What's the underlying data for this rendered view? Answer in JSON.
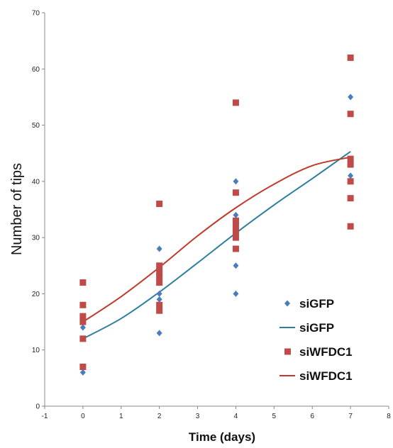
{
  "chart_data": {
    "type": "scatter",
    "title": "",
    "xlabel": "Time (days)",
    "ylabel": "Number of tips",
    "xlim": [
      -1,
      8
    ],
    "ylim": [
      0,
      70
    ],
    "xticks": [
      "-1",
      "0",
      "1",
      "2",
      "3",
      "4",
      "5",
      "6",
      "7",
      "8"
    ],
    "yticks": [
      "0",
      "10",
      "20",
      "30",
      "40",
      "50",
      "60",
      "70"
    ],
    "grid": false,
    "legend_position": "bottom-right",
    "series": [
      {
        "name": "siGFP",
        "kind": "points",
        "marker": "diamond",
        "color": "#4a7ebb",
        "points": [
          [
            0,
            6
          ],
          [
            0,
            12
          ],
          [
            0,
            14
          ],
          [
            0,
            15
          ],
          [
            2,
            13
          ],
          [
            2,
            18
          ],
          [
            2,
            19
          ],
          [
            2,
            20
          ],
          [
            2,
            22
          ],
          [
            2,
            28
          ],
          [
            4,
            20
          ],
          [
            4,
            25
          ],
          [
            4,
            30
          ],
          [
            4,
            31
          ],
          [
            4,
            32
          ],
          [
            4,
            34
          ],
          [
            4,
            40
          ],
          [
            7,
            41
          ],
          [
            7,
            43
          ],
          [
            7,
            55
          ]
        ]
      },
      {
        "name": "siGFP",
        "kind": "curve",
        "color": "#2e7f9c",
        "x": [
          0,
          1,
          2,
          3,
          4,
          5,
          6,
          7
        ],
        "y": [
          12,
          15.6,
          20.3,
          25.5,
          30.8,
          35.8,
          40.5,
          45.3
        ]
      },
      {
        "name": "siWFDC1",
        "kind": "points",
        "marker": "square",
        "color": "#be4b48",
        "points": [
          [
            0,
            7
          ],
          [
            0,
            12
          ],
          [
            0,
            15
          ],
          [
            0,
            16
          ],
          [
            0,
            18
          ],
          [
            0,
            22
          ],
          [
            2,
            17
          ],
          [
            2,
            18
          ],
          [
            2,
            22
          ],
          [
            2,
            23
          ],
          [
            2,
            24
          ],
          [
            2,
            25
          ],
          [
            2,
            36
          ],
          [
            4,
            28
          ],
          [
            4,
            30
          ],
          [
            4,
            31
          ],
          [
            4,
            32
          ],
          [
            4,
            33
          ],
          [
            4,
            38
          ],
          [
            4,
            54
          ],
          [
            7,
            32
          ],
          [
            7,
            37
          ],
          [
            7,
            40
          ],
          [
            7,
            43
          ],
          [
            7,
            44
          ],
          [
            7,
            52
          ],
          [
            7,
            62
          ]
        ]
      },
      {
        "name": "siWFDC1",
        "kind": "curve",
        "color": "#c0392b",
        "x": [
          0,
          1,
          2,
          3,
          4,
          5,
          6,
          7
        ],
        "y": [
          15,
          19.5,
          24.7,
          30.3,
          35.3,
          39.5,
          42.8,
          44.3
        ]
      }
    ]
  }
}
